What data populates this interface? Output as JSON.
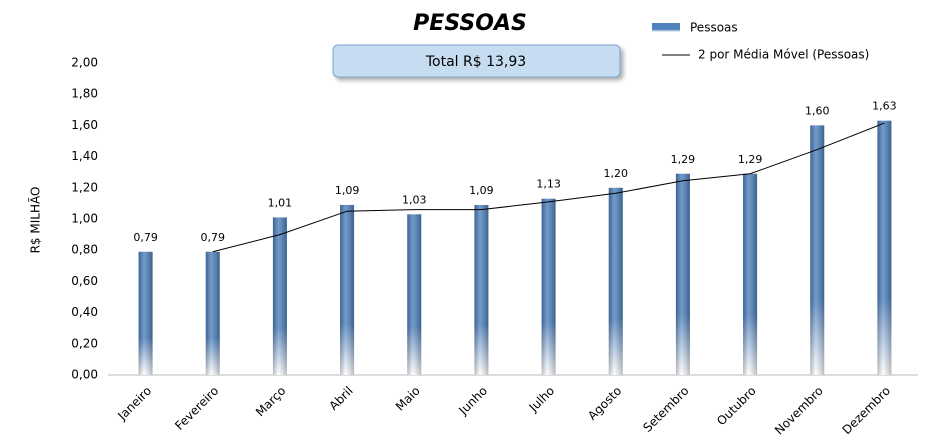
{
  "chart_data": {
    "type": "bar",
    "title": "PESSOAS",
    "annotation": "Total R$ 13,93",
    "y_label": "R$ MILHÃO",
    "categories": [
      "Janeiro",
      "Fevereiro",
      "Março",
      "Abril",
      "Maio",
      "Junho",
      "Julho",
      "Agosto",
      "Setembro",
      "Outubro",
      "Novembro",
      "Dezembro"
    ],
    "series": [
      {
        "name": "Pessoas",
        "type": "bar",
        "color": "#4f81bd",
        "values": [
          0.79,
          0.79,
          1.01,
          1.09,
          1.03,
          1.09,
          1.13,
          1.2,
          1.29,
          1.29,
          1.6,
          1.63
        ],
        "value_labels": [
          "0,79",
          "0,79",
          "1,01",
          "1,09",
          "1,03",
          "1,09",
          "1,13",
          "1,20",
          "1,29",
          "1,29",
          "1,60",
          "1,63"
        ]
      },
      {
        "name": "2 por Média Móvel (Pessoas)",
        "type": "line",
        "color": "#000000",
        "values": [
          null,
          0.79,
          0.9,
          1.05,
          1.06,
          1.06,
          1.11,
          1.165,
          1.245,
          1.29,
          1.445,
          1.615
        ]
      }
    ],
    "ylim": [
      0,
      2
    ],
    "yticks": [
      {
        "value": 0,
        "label": "0,00"
      },
      {
        "value": 0.2,
        "label": "0,20"
      },
      {
        "value": 0.4,
        "label": "0,40"
      },
      {
        "value": 0.6,
        "label": "0,60"
      },
      {
        "value": 0.8,
        "label": "0,80"
      },
      {
        "value": 1,
        "label": "1,00"
      },
      {
        "value": 1.2,
        "label": "1,20"
      },
      {
        "value": 1.4,
        "label": "1,40"
      },
      {
        "value": 1.6,
        "label": "1,60"
      },
      {
        "value": 1.8,
        "label": "1,80"
      },
      {
        "value": 2,
        "label": "2,00"
      }
    ],
    "grid": false
  }
}
